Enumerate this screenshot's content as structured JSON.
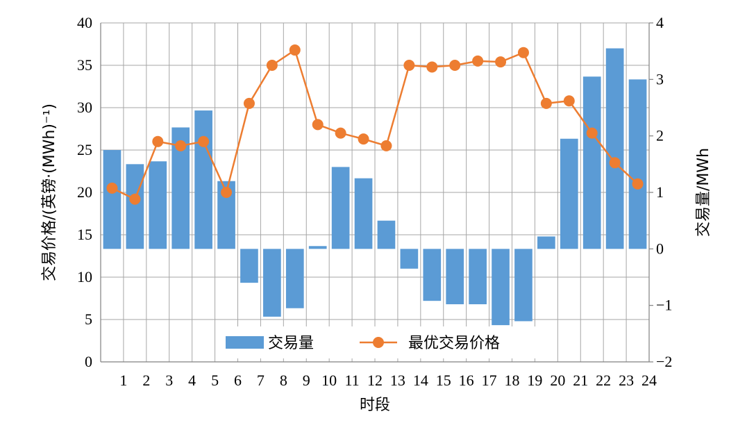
{
  "chart_data": {
    "type": "bar+line",
    "xlabel": "时段",
    "ylabel_left": "交易价格/(英镑·(MWh)⁻¹)",
    "ylabel_right": "交易量/MWh",
    "categories": [
      "1",
      "2",
      "3",
      "4",
      "5",
      "6",
      "7",
      "8",
      "9",
      "10",
      "11",
      "12",
      "13",
      "14",
      "15",
      "16",
      "17",
      "18",
      "19",
      "20",
      "21",
      "22",
      "23",
      "24"
    ],
    "left_axis": {
      "min": 0,
      "max": 40,
      "ticks": [
        "0",
        "5",
        "10",
        "15",
        "20",
        "25",
        "30",
        "35",
        "40"
      ]
    },
    "right_axis": {
      "min": -2,
      "max": 4,
      "ticks": [
        "−2",
        "−1",
        "0",
        "1",
        "2",
        "3",
        "4"
      ]
    },
    "grid": true,
    "legend_position": "bottom-center",
    "series": [
      {
        "name": "交易量",
        "kind": "bar",
        "axis": "right",
        "color": "#5b9bd5",
        "values": [
          1.75,
          1.5,
          1.55,
          2.15,
          2.45,
          1.2,
          -0.6,
          -1.2,
          -1.05,
          0.05,
          1.45,
          1.25,
          0.5,
          -0.35,
          -0.92,
          -0.98,
          -0.98,
          -1.35,
          -1.28,
          0.22,
          1.95,
          3.05,
          3.55,
          3.0
        ]
      },
      {
        "name": "最优交易价格",
        "kind": "line",
        "axis": "left",
        "color": "#ed7d31",
        "values": [
          20.5,
          19.2,
          26.0,
          25.5,
          26.0,
          20.0,
          30.5,
          35.0,
          36.8,
          28.0,
          27.0,
          26.3,
          25.5,
          35.0,
          34.8,
          35.0,
          35.5,
          35.4,
          36.5,
          30.5,
          30.8,
          27.0,
          23.5,
          21.0
        ]
      }
    ]
  }
}
